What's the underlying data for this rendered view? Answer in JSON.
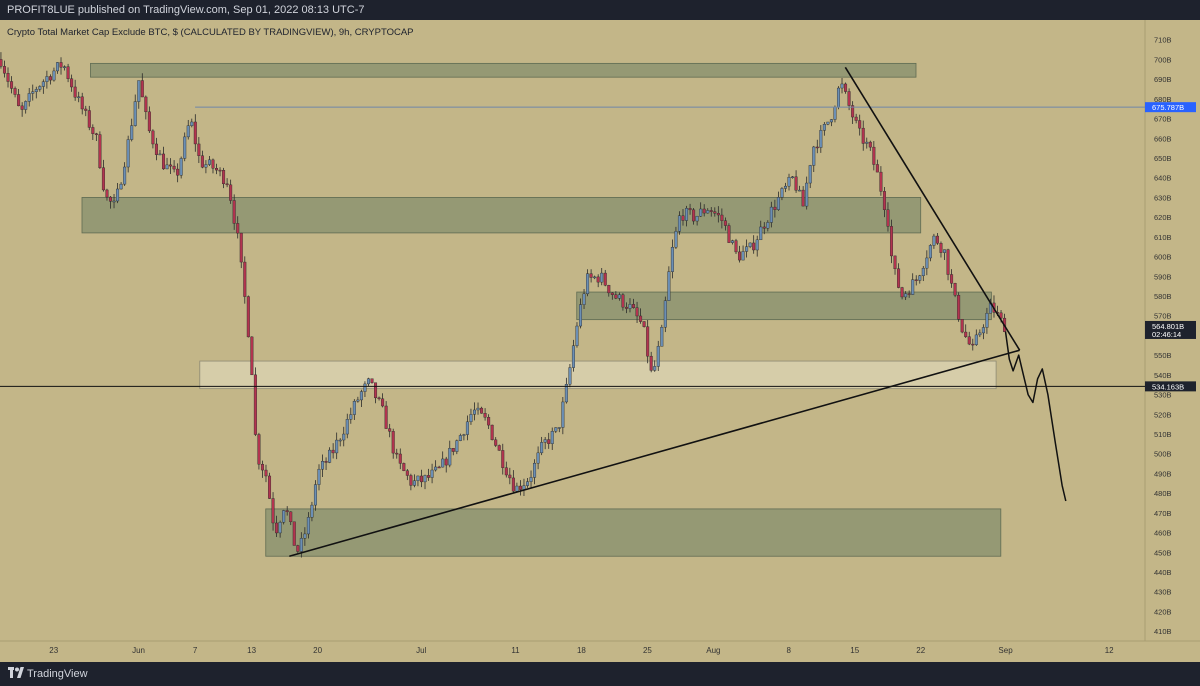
{
  "header": {
    "published": "PROFIT8LUE published on TradingView.com, Sep 01, 2022 08:13 UTC-7"
  },
  "footer": {
    "brand": "TradingView"
  },
  "colors": {
    "background": "#c3b688",
    "zone": "#7d8b6a",
    "zone_light": "#e3dcc0",
    "up": "#6b8fb5",
    "down": "#b2344f",
    "axis_bg": "#c3b688",
    "price_label_blue": "#2962ff",
    "frame": "#1e222d"
  },
  "chart_data": {
    "type": "candlestick",
    "title": "Crypto Total Market Cap Exclude BTC, $ (CALCULATED BY TRADINGVIEW), 9h, CRYPTOCAP",
    "ylim": [
      405,
      720
    ],
    "y_ticks": [
      {
        "v": 710,
        "label": "710B"
      },
      {
        "v": 700,
        "label": "700B"
      },
      {
        "v": 690,
        "label": "690B"
      },
      {
        "v": 680,
        "label": "680B"
      },
      {
        "v": 670,
        "label": "670B"
      },
      {
        "v": 660,
        "label": "660B"
      },
      {
        "v": 650,
        "label": "650B"
      },
      {
        "v": 640,
        "label": "640B"
      },
      {
        "v": 630,
        "label": "630B"
      },
      {
        "v": 620,
        "label": "620B"
      },
      {
        "v": 610,
        "label": "610B"
      },
      {
        "v": 600,
        "label": "600B"
      },
      {
        "v": 590,
        "label": "590B"
      },
      {
        "v": 580,
        "label": "580B"
      },
      {
        "v": 570,
        "label": "570B"
      },
      {
        "v": 550,
        "label": "550B"
      },
      {
        "v": 540,
        "label": "540B"
      },
      {
        "v": 530,
        "label": "530B"
      },
      {
        "v": 520,
        "label": "520B"
      },
      {
        "v": 510,
        "label": "510B"
      },
      {
        "v": 500,
        "label": "500B"
      },
      {
        "v": 490,
        "label": "490B"
      },
      {
        "v": 480,
        "label": "480B"
      },
      {
        "v": 470,
        "label": "470B"
      },
      {
        "v": 460,
        "label": "460B"
      },
      {
        "v": 450,
        "label": "450B"
      },
      {
        "v": 440,
        "label": "440B"
      },
      {
        "v": 430,
        "label": "430B"
      },
      {
        "v": 420,
        "label": "420B"
      },
      {
        "v": 410,
        "label": "410B"
      }
    ],
    "x_ticks": [
      {
        "day": 23,
        "label": "23"
      },
      {
        "day": 32,
        "label": "Jun"
      },
      {
        "day": 38,
        "label": "7"
      },
      {
        "day": 44,
        "label": "13"
      },
      {
        "day": 51,
        "label": "20"
      },
      {
        "day": 62,
        "label": "Jul"
      },
      {
        "day": 72,
        "label": "11"
      },
      {
        "day": 79,
        "label": "18"
      },
      {
        "day": 86,
        "label": "25"
      },
      {
        "day": 93,
        "label": "Aug"
      },
      {
        "day": 101,
        "label": "8"
      },
      {
        "day": 108,
        "label": "15"
      },
      {
        "day": 115,
        "label": "22"
      },
      {
        "day": 124,
        "label": "Sep"
      },
      {
        "day": 135,
        "label": "12"
      }
    ],
    "x_range_days": [
      17.3,
      138.8
    ],
    "price_labels": [
      {
        "label": "675.787B",
        "value": 675.787,
        "style": "blue"
      },
      {
        "label": "564.801B",
        "sub": "02:46:14",
        "value": 564.801,
        "style": "dark"
      },
      {
        "label": "534.163B",
        "value": 534.163,
        "style": "dark"
      }
    ],
    "keypoints": [
      {
        "day": 17.4,
        "v": 700
      },
      {
        "day": 19.5,
        "v": 672
      },
      {
        "day": 21.0,
        "v": 685
      },
      {
        "day": 22.5,
        "v": 692
      },
      {
        "day": 24.0,
        "v": 698
      },
      {
        "day": 25.5,
        "v": 680
      },
      {
        "day": 27.5,
        "v": 660
      },
      {
        "day": 28.5,
        "v": 630
      },
      {
        "day": 29.5,
        "v": 625
      },
      {
        "day": 31.0,
        "v": 660
      },
      {
        "day": 32.0,
        "v": 690
      },
      {
        "day": 33.0,
        "v": 665
      },
      {
        "day": 34.5,
        "v": 648
      },
      {
        "day": 36.0,
        "v": 640
      },
      {
        "day": 37.5,
        "v": 670
      },
      {
        "day": 38.5,
        "v": 648
      },
      {
        "day": 40.0,
        "v": 645
      },
      {
        "day": 41.5,
        "v": 638
      },
      {
        "day": 42.5,
        "v": 610
      },
      {
        "day": 43.5,
        "v": 570
      },
      {
        "day": 44.0,
        "v": 545
      },
      {
        "day": 44.5,
        "v": 500
      },
      {
        "day": 45.5,
        "v": 490
      },
      {
        "day": 46.5,
        "v": 460
      },
      {
        "day": 47.5,
        "v": 475
      },
      {
        "day": 48.5,
        "v": 455
      },
      {
        "day": 49.0,
        "v": 450
      },
      {
        "day": 50.0,
        "v": 465
      },
      {
        "day": 51.0,
        "v": 490
      },
      {
        "day": 52.5,
        "v": 500
      },
      {
        "day": 54.0,
        "v": 515
      },
      {
        "day": 55.5,
        "v": 530
      },
      {
        "day": 56.5,
        "v": 536
      },
      {
        "day": 58.0,
        "v": 520
      },
      {
        "day": 59.5,
        "v": 495
      },
      {
        "day": 61.0,
        "v": 485
      },
      {
        "day": 62.5,
        "v": 487
      },
      {
        "day": 64.0,
        "v": 492
      },
      {
        "day": 66.0,
        "v": 508
      },
      {
        "day": 67.5,
        "v": 522
      },
      {
        "day": 69.0,
        "v": 516
      },
      {
        "day": 70.5,
        "v": 498
      },
      {
        "day": 72.0,
        "v": 482
      },
      {
        "day": 73.5,
        "v": 488
      },
      {
        "day": 75.0,
        "v": 505
      },
      {
        "day": 76.5,
        "v": 512
      },
      {
        "day": 77.5,
        "v": 535
      },
      {
        "day": 78.5,
        "v": 565
      },
      {
        "day": 79.5,
        "v": 588
      },
      {
        "day": 81.0,
        "v": 590
      },
      {
        "day": 82.5,
        "v": 580
      },
      {
        "day": 84.0,
        "v": 575
      },
      {
        "day": 85.5,
        "v": 565
      },
      {
        "day": 86.5,
        "v": 538
      },
      {
        "day": 87.5,
        "v": 560
      },
      {
        "day": 88.5,
        "v": 600
      },
      {
        "day": 89.5,
        "v": 622
      },
      {
        "day": 91.0,
        "v": 620
      },
      {
        "day": 92.5,
        "v": 625
      },
      {
        "day": 94.0,
        "v": 618
      },
      {
        "day": 95.5,
        "v": 600
      },
      {
        "day": 97.0,
        "v": 604
      },
      {
        "day": 98.5,
        "v": 618
      },
      {
        "day": 100.0,
        "v": 630
      },
      {
        "day": 101.5,
        "v": 640
      },
      {
        "day": 102.5,
        "v": 625
      },
      {
        "day": 103.5,
        "v": 655
      },
      {
        "day": 104.5,
        "v": 662
      },
      {
        "day": 105.5,
        "v": 672
      },
      {
        "day": 106.5,
        "v": 688
      },
      {
        "day": 107.5,
        "v": 675
      },
      {
        "day": 108.5,
        "v": 662
      },
      {
        "day": 109.5,
        "v": 655
      },
      {
        "day": 110.5,
        "v": 640
      },
      {
        "day": 111.5,
        "v": 620
      },
      {
        "day": 112.0,
        "v": 595
      },
      {
        "day": 113.0,
        "v": 580
      },
      {
        "day": 114.5,
        "v": 588
      },
      {
        "day": 115.5,
        "v": 600
      },
      {
        "day": 116.5,
        "v": 610
      },
      {
        "day": 117.5,
        "v": 603
      },
      {
        "day": 118.5,
        "v": 580
      },
      {
        "day": 119.5,
        "v": 562
      },
      {
        "day": 120.5,
        "v": 552
      },
      {
        "day": 121.5,
        "v": 565
      },
      {
        "day": 122.5,
        "v": 575
      },
      {
        "day": 123.5,
        "v": 567
      },
      {
        "day": 124.0,
        "v": 564.8
      }
    ],
    "zones": [
      {
        "d0": 26.9,
        "d1": 114.5,
        "top": 698,
        "bottom": 691,
        "shade": "dark"
      },
      {
        "d0": 26.0,
        "d1": 115.0,
        "top": 630,
        "bottom": 612,
        "shade": "dark"
      },
      {
        "d0": 78.5,
        "d1": 122.5,
        "top": 582,
        "bottom": 568,
        "shade": "dark"
      },
      {
        "d0": 38.5,
        "d1": 123.0,
        "top": 547,
        "bottom": 533,
        "shade": "light"
      },
      {
        "d0": 45.5,
        "d1": 123.5,
        "top": 472,
        "bottom": 448,
        "shade": "dark"
      }
    ],
    "lines": [
      {
        "d0": 38.0,
        "v0": 675.787,
        "d1": 138.8,
        "v1": 675.787,
        "kind": "hline-thin"
      },
      {
        "d0": 17.3,
        "v0": 534.163,
        "d1": 138.8,
        "v1": 534.163,
        "kind": "hline"
      },
      {
        "d0": 48.0,
        "v0": 448,
        "d1": 125.5,
        "v1": 552.5,
        "kind": "trend"
      },
      {
        "d0": 107.0,
        "v0": 696,
        "d1": 125.5,
        "v1": 552.5,
        "kind": "trend"
      }
    ],
    "projection": [
      {
        "day": 124.0,
        "v": 562
      },
      {
        "day": 124.4,
        "v": 548
      },
      {
        "day": 124.8,
        "v": 542
      },
      {
        "day": 125.4,
        "v": 550
      },
      {
        "day": 125.9,
        "v": 540
      },
      {
        "day": 126.4,
        "v": 530
      },
      {
        "day": 126.9,
        "v": 526
      },
      {
        "day": 127.4,
        "v": 538
      },
      {
        "day": 127.9,
        "v": 543
      },
      {
        "day": 128.5,
        "v": 530
      },
      {
        "day": 129.3,
        "v": 505
      },
      {
        "day": 130.0,
        "v": 484
      },
      {
        "day": 130.4,
        "v": 476
      }
    ]
  }
}
